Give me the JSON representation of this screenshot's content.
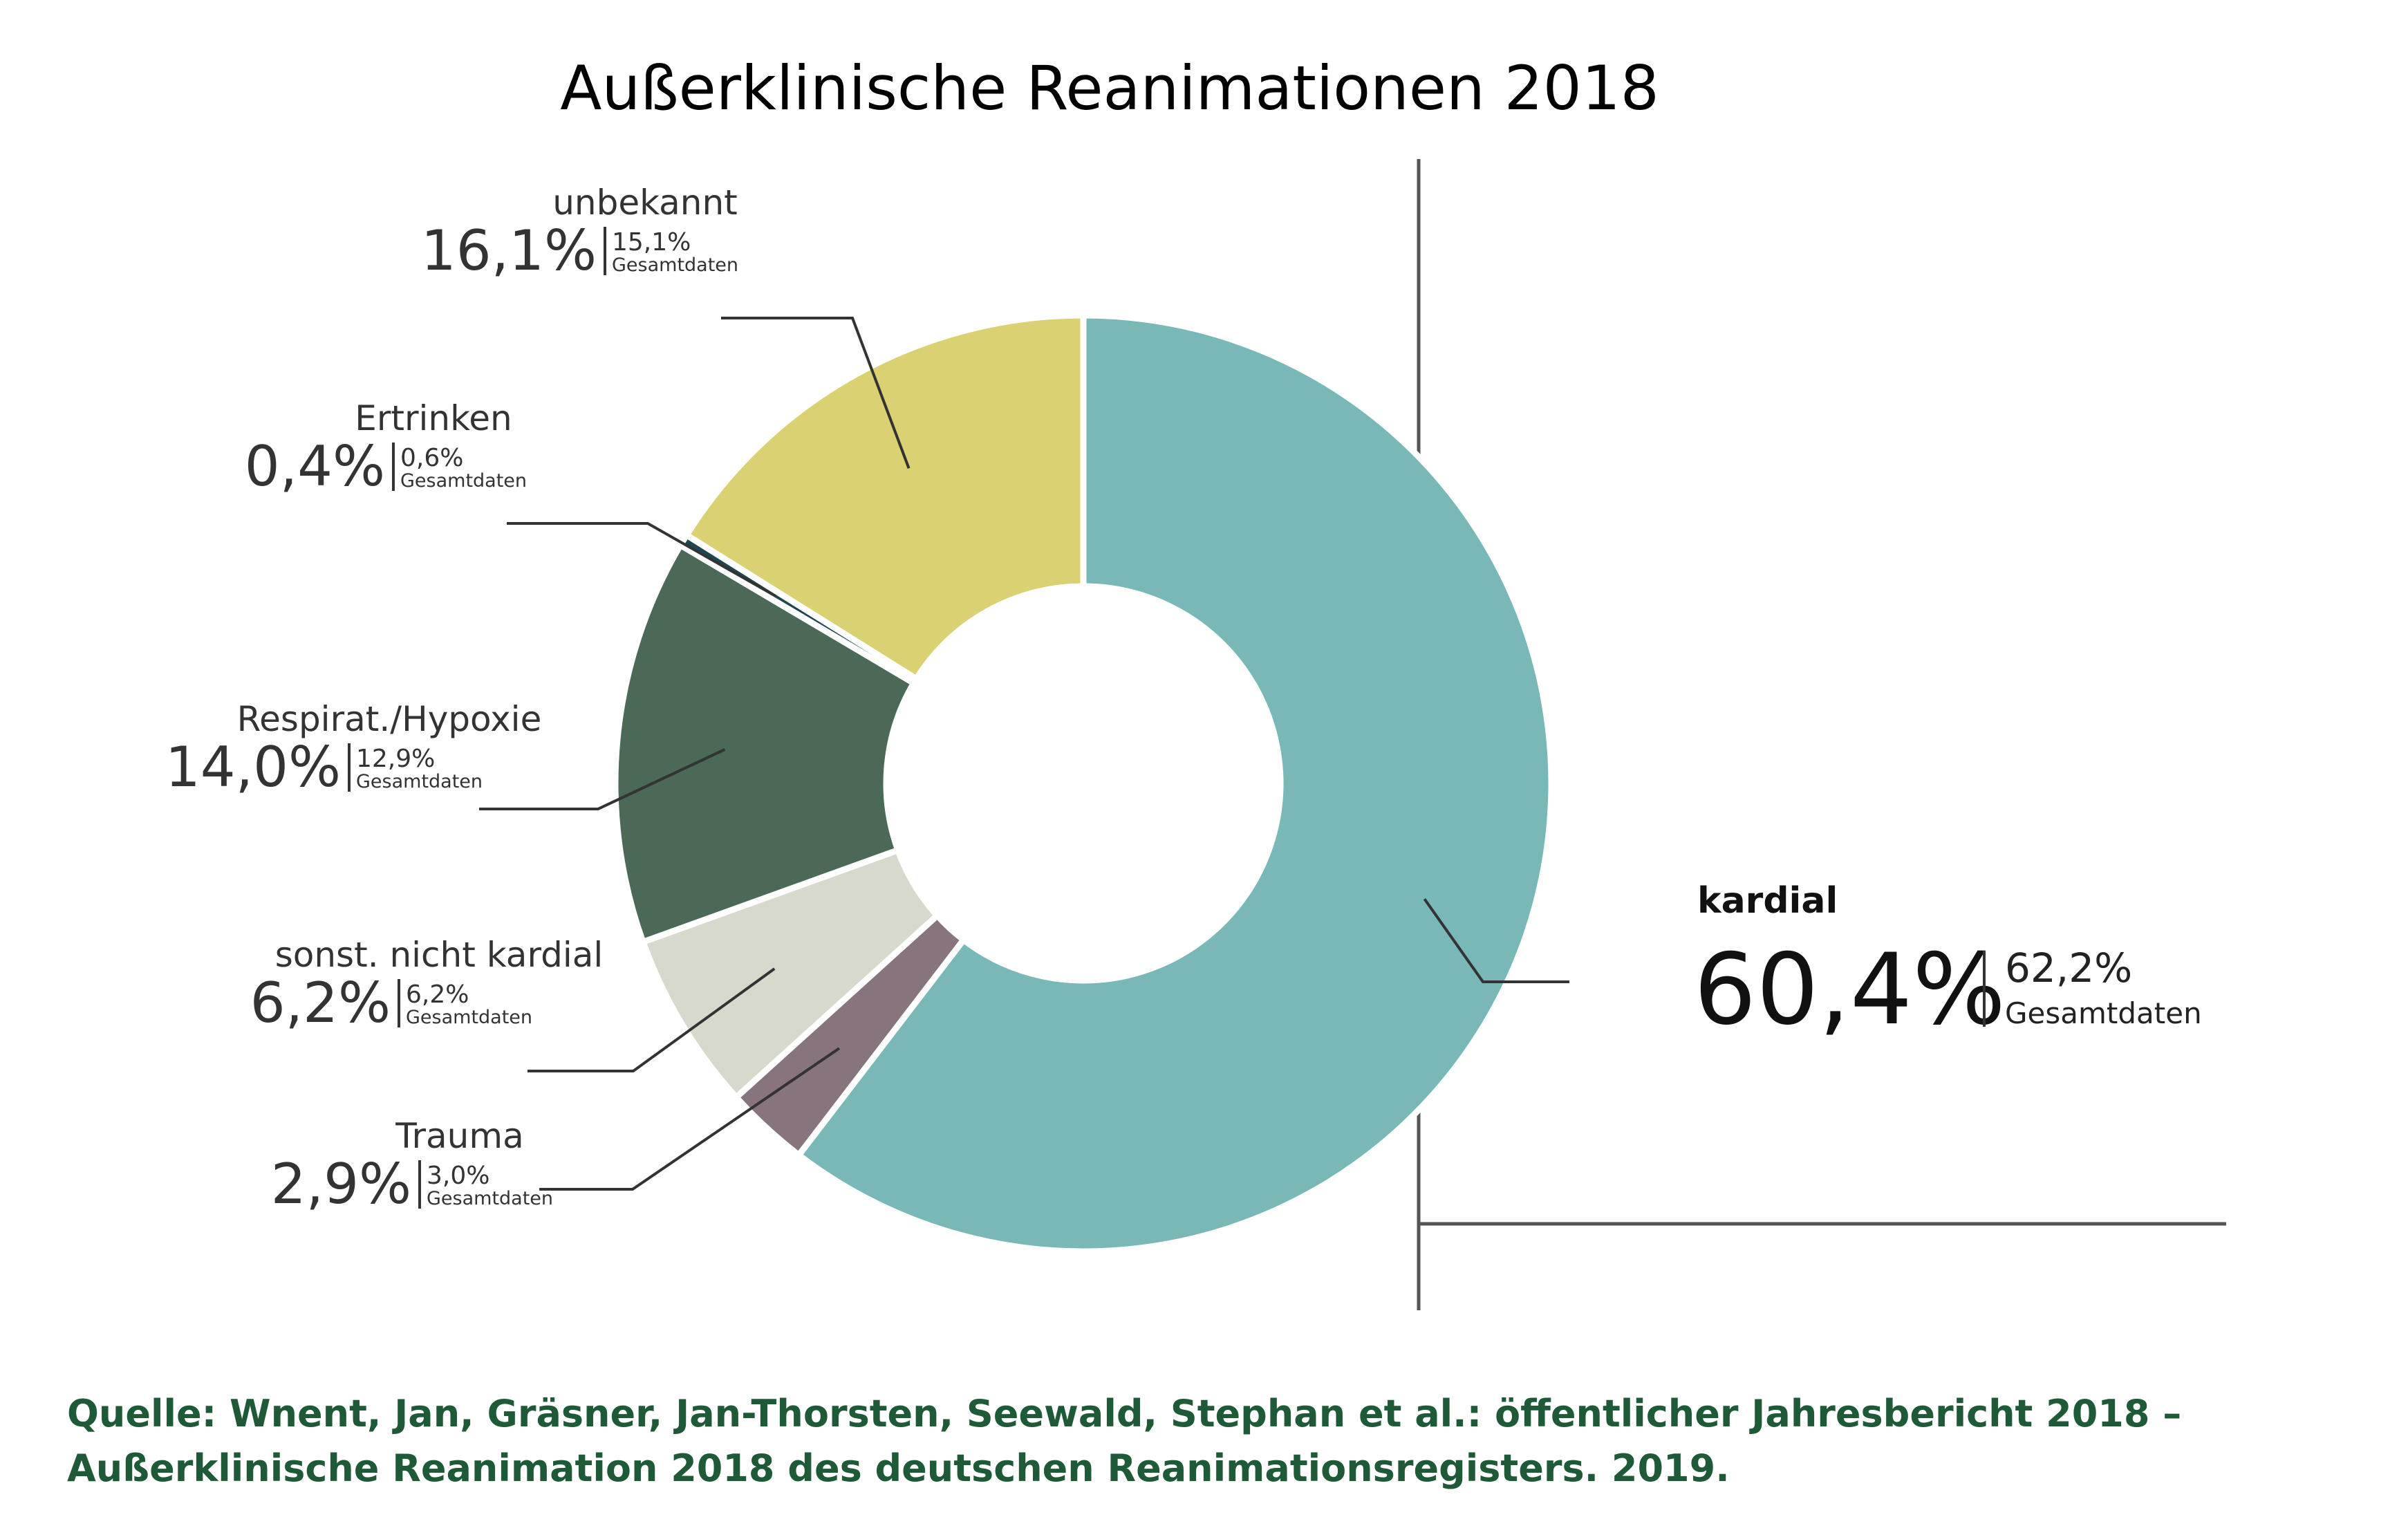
{
  "title": "Außerklinische Reanimationen 2018",
  "chart_data": {
    "type": "pie",
    "variant": "donut",
    "title": "Außerklinische Reanimationen 2018",
    "total_label": "Gesamtdaten",
    "slices": [
      {
        "label": "kardial",
        "value": 60.4,
        "value_text": "60,4%",
        "total_value": 62.2,
        "total_text": "62,2%",
        "color": "#78b8b6"
      },
      {
        "label": "Trauma",
        "value": 2.9,
        "value_text": "2,9%",
        "total_value": 3.0,
        "total_text": "3,0%",
        "color": "#87747d"
      },
      {
        "label": "sonst. nicht kardial",
        "value": 6.2,
        "value_text": "6,2%",
        "total_value": 6.2,
        "total_text": "6,2%",
        "color": "#d7d9cc"
      },
      {
        "label": "Respirat./Hypoxie",
        "value": 14.0,
        "value_text": "14,0%",
        "total_value": 12.9,
        "total_text": "12,9%",
        "color": "#4a6957"
      },
      {
        "label": "Ertrinken",
        "value": 0.4,
        "value_text": "0,4%",
        "total_value": 0.6,
        "total_text": "0,6%",
        "color": "#1d4651"
      },
      {
        "label": "unbekannt",
        "value": 16.1,
        "value_text": "16,1%",
        "total_value": 15.1,
        "total_text": "15,1%",
        "color": "#d9d172"
      }
    ]
  },
  "source": {
    "line1": "Quelle: Wnent, Jan, Gräsner, Jan-Thorsten, Seewald, Stephan et al.: öffentlicher Jahresbericht 2018 –",
    "line2": "Außerklinische Reanimation 2018 des deutschen Reanimationsregisters. 2019."
  }
}
